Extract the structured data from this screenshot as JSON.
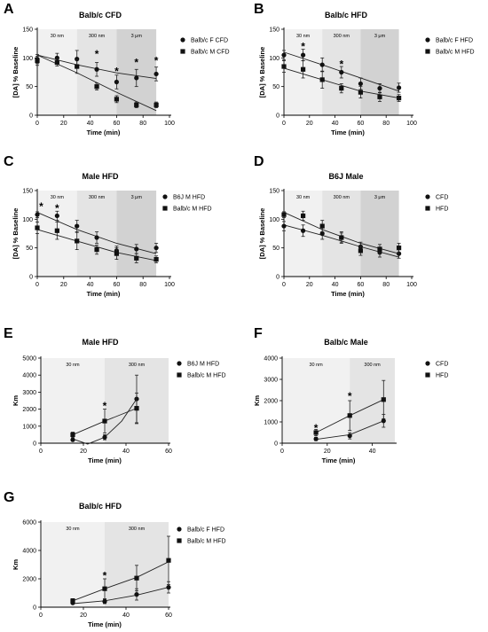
{
  "chart_data": [
    {
      "panel": "A",
      "type": "scatter",
      "title": "Balb/c CFD",
      "xlabel": "Time (min)",
      "ylabel": "[DA] % Baseline",
      "xlim": [
        0,
        100
      ],
      "ylim": [
        0,
        150
      ],
      "xticks": [
        0,
        20,
        40,
        60,
        80,
        100
      ],
      "yticks": [
        0,
        50,
        100,
        150
      ],
      "zones": [
        {
          "label": "30 nm",
          "from": 0,
          "to": 30,
          "shade": "#f1f1f1"
        },
        {
          "label": "300 nm",
          "from": 30,
          "to": 60,
          "shade": "#e4e4e4"
        },
        {
          "label": "3 μm",
          "from": 60,
          "to": 90,
          "shade": "#d2d2d2"
        }
      ],
      "series": [
        {
          "name": "Balb/c F CFD",
          "marker": "circle",
          "x": [
            0,
            15,
            30,
            45,
            60,
            75,
            90
          ],
          "y": [
            98,
            100,
            98,
            80,
            58,
            65,
            72
          ],
          "err": [
            8,
            8,
            15,
            12,
            12,
            15,
            12
          ],
          "fit": [
            [
              0,
              105
            ],
            [
              30,
              88
            ],
            [
              60,
              74
            ],
            [
              90,
              64
            ]
          ]
        },
        {
          "name": "Balb/c M CFD",
          "marker": "square",
          "x": [
            0,
            15,
            30,
            45,
            60,
            75,
            90
          ],
          "y": [
            95,
            92,
            85,
            50,
            28,
            18,
            18
          ],
          "err": [
            8,
            6,
            12,
            6,
            6,
            5,
            5
          ],
          "fit": [
            [
              0,
              105
            ],
            [
              30,
              74
            ],
            [
              60,
              40
            ],
            [
              90,
              8
            ]
          ]
        }
      ],
      "stars": [
        {
          "x": 45,
          "y": 110
        },
        {
          "x": 60,
          "y": 80
        },
        {
          "x": 75,
          "y": 95
        },
        {
          "x": 90,
          "y": 98
        }
      ]
    },
    {
      "panel": "B",
      "type": "scatter",
      "title": "Balb/c HFD",
      "xlabel": "Time (min)",
      "ylabel": "[DA] % Baseline",
      "xlim": [
        0,
        100
      ],
      "ylim": [
        0,
        150
      ],
      "xticks": [
        0,
        20,
        40,
        60,
        80,
        100
      ],
      "yticks": [
        0,
        50,
        100,
        150
      ],
      "zones": [
        {
          "label": "30 nm",
          "from": 0,
          "to": 30,
          "shade": "#f1f1f1"
        },
        {
          "label": "300 nm",
          "from": 30,
          "to": 60,
          "shade": "#e4e4e4"
        },
        {
          "label": "3 μm",
          "from": 60,
          "to": 90,
          "shade": "#d2d2d2"
        }
      ],
      "series": [
        {
          "name": "Balb/c F HFD",
          "marker": "circle",
          "x": [
            0,
            15,
            30,
            45,
            60,
            75,
            90
          ],
          "y": [
            105,
            105,
            88,
            75,
            55,
            47,
            48
          ],
          "err": [
            8,
            10,
            12,
            10,
            10,
            8,
            8
          ],
          "fit": [
            [
              0,
              110
            ],
            [
              30,
              88
            ],
            [
              60,
              65
            ],
            [
              90,
              42
            ]
          ]
        },
        {
          "name": "Balb/c M HFD",
          "marker": "square",
          "x": [
            0,
            15,
            30,
            45,
            60,
            75,
            90
          ],
          "y": [
            85,
            80,
            62,
            47,
            40,
            32,
            30
          ],
          "err": [
            10,
            15,
            15,
            8,
            10,
            8,
            6
          ],
          "fit": [
            [
              0,
              82
            ],
            [
              30,
              62
            ],
            [
              60,
              42
            ],
            [
              90,
              30
            ]
          ]
        }
      ],
      "stars": [
        {
          "x": 15,
          "y": 123
        },
        {
          "x": 45,
          "y": 92
        }
      ]
    },
    {
      "panel": "C",
      "type": "scatter",
      "title": "Male HFD",
      "xlabel": "Time (min)",
      "ylabel": "[DA] % Baseline",
      "xlim": [
        0,
        100
      ],
      "ylim": [
        0,
        150
      ],
      "xticks": [
        0,
        20,
        40,
        60,
        80,
        100
      ],
      "yticks": [
        0,
        50,
        100,
        150
      ],
      "zones": [
        {
          "label": "30 nm",
          "from": 0,
          "to": 30,
          "shade": "#f1f1f1"
        },
        {
          "label": "300 nm",
          "from": 30,
          "to": 60,
          "shade": "#e4e4e4"
        },
        {
          "label": "3 μm",
          "from": 60,
          "to": 90,
          "shade": "#d2d2d2"
        }
      ],
      "series": [
        {
          "name": "B6J M HFD",
          "marker": "circle",
          "x": [
            0,
            15,
            30,
            45,
            60,
            75,
            90
          ],
          "y": [
            108,
            106,
            88,
            68,
            45,
            48,
            50
          ],
          "err": [
            5,
            8,
            10,
            10,
            8,
            8,
            8
          ],
          "fit": [
            [
              0,
              112
            ],
            [
              30,
              82
            ],
            [
              60,
              58
            ],
            [
              90,
              40
            ]
          ]
        },
        {
          "name": "Balb/c M HFD",
          "marker": "square",
          "x": [
            0,
            15,
            30,
            45,
            60,
            75,
            90
          ],
          "y": [
            85,
            80,
            62,
            47,
            40,
            32,
            30
          ],
          "err": [
            10,
            15,
            15,
            8,
            10,
            8,
            6
          ],
          "fit": [
            [
              0,
              82
            ],
            [
              30,
              62
            ],
            [
              60,
              42
            ],
            [
              90,
              28
            ]
          ]
        }
      ],
      "stars": [
        {
          "x": 3,
          "y": 125
        },
        {
          "x": 15,
          "y": 122
        }
      ]
    },
    {
      "panel": "D",
      "type": "scatter",
      "title": "B6J Male",
      "xlabel": "Time (min)",
      "ylabel": "[DA] % Baseline",
      "xlim": [
        0,
        100
      ],
      "ylim": [
        0,
        150
      ],
      "xticks": [
        0,
        20,
        40,
        60,
        80,
        100
      ],
      "yticks": [
        0,
        50,
        100,
        150
      ],
      "zones": [
        {
          "label": "30 nm",
          "from": 0,
          "to": 30,
          "shade": "#f1f1f1"
        },
        {
          "label": "300 nm",
          "from": 30,
          "to": 60,
          "shade": "#e4e4e4"
        },
        {
          "label": "3 μm",
          "from": 60,
          "to": 90,
          "shade": "#d2d2d2"
        }
      ],
      "series": [
        {
          "name": "CFD",
          "marker": "circle",
          "x": [
            0,
            15,
            30,
            45,
            60,
            75,
            90
          ],
          "y": [
            88,
            80,
            75,
            68,
            52,
            42,
            40
          ],
          "err": [
            8,
            10,
            10,
            8,
            8,
            8,
            8
          ],
          "fit": [
            [
              0,
              90
            ],
            [
              30,
              72
            ],
            [
              60,
              52
            ],
            [
              90,
              34
            ]
          ]
        },
        {
          "name": "HFD",
          "marker": "square",
          "x": [
            0,
            15,
            30,
            45,
            60,
            75,
            90
          ],
          "y": [
            108,
            106,
            88,
            68,
            45,
            48,
            50
          ],
          "err": [
            5,
            8,
            10,
            10,
            8,
            8,
            8
          ],
          "fit": [
            [
              0,
              112
            ],
            [
              30,
              82
            ],
            [
              60,
              58
            ],
            [
              90,
              40
            ]
          ]
        }
      ],
      "stars": []
    },
    {
      "panel": "E",
      "type": "scatter",
      "title": "Male HFD",
      "xlabel": "Time (min)",
      "ylabel": "Km",
      "xlim": [
        0,
        60
      ],
      "ylim": [
        0,
        5000
      ],
      "xticks": [
        0,
        20,
        40,
        60
      ],
      "yticks": [
        0,
        1000,
        2000,
        3000,
        4000,
        5000
      ],
      "zones": [
        {
          "label": "30 nm",
          "from": 0,
          "to": 30,
          "shade": "#f1f1f1"
        },
        {
          "label": "300 nm",
          "from": 30,
          "to": 60,
          "shade": "#e4e4e4"
        }
      ],
      "series": [
        {
          "name": "B6J M HFD",
          "marker": "circle",
          "x": [
            15,
            30,
            45
          ],
          "y": [
            200,
            350,
            2600
          ],
          "err": [
            80,
            150,
            1400
          ],
          "fit": [
            [
              15,
              250
            ],
            [
              22,
              -50
            ],
            [
              30,
              350
            ],
            [
              38,
              1300
            ],
            [
              45,
              2600
            ]
          ]
        },
        {
          "name": "Balb/c M HFD",
          "marker": "square",
          "x": [
            15,
            30,
            45
          ],
          "y": [
            500,
            1300,
            2050
          ],
          "err": [
            150,
            700,
            900
          ],
          "fit": [
            [
              15,
              500
            ],
            [
              30,
              1300
            ],
            [
              45,
              2050
            ]
          ]
        }
      ],
      "stars": [
        {
          "x": 30,
          "y": 2300
        }
      ]
    },
    {
      "panel": "F",
      "type": "scatter",
      "title": "Balb/c Male",
      "xlabel": "Time (min)",
      "ylabel": "Km",
      "xlim": [
        0,
        50
      ],
      "ylim": [
        0,
        4000
      ],
      "xticks": [
        0,
        20,
        40
      ],
      "yticks": [
        0,
        1000,
        2000,
        3000,
        4000
      ],
      "zones": [
        {
          "label": "30 nm",
          "from": 0,
          "to": 30,
          "shade": "#f1f1f1"
        },
        {
          "label": "300 nm",
          "from": 30,
          "to": 50,
          "shade": "#e4e4e4"
        }
      ],
      "series": [
        {
          "name": "CFD",
          "marker": "circle",
          "x": [
            15,
            30,
            45
          ],
          "y": [
            200,
            350,
            1050
          ],
          "err": [
            80,
            150,
            300
          ],
          "fit": [
            [
              15,
              180
            ],
            [
              30,
              400
            ],
            [
              45,
              1050
            ]
          ]
        },
        {
          "name": "HFD",
          "marker": "square",
          "x": [
            15,
            30,
            45
          ],
          "y": [
            500,
            1300,
            2050
          ],
          "err": [
            150,
            700,
            900
          ],
          "fit": [
            [
              15,
              500
            ],
            [
              30,
              1300
            ],
            [
              45,
              2050
            ]
          ]
        }
      ],
      "stars": [
        {
          "x": 15,
          "y": 800
        },
        {
          "x": 30,
          "y": 2300
        }
      ]
    },
    {
      "panel": "G",
      "type": "scatter",
      "title": "Balb/c HFD",
      "xlabel": "Time (min)",
      "ylabel": "Km",
      "xlim": [
        0,
        60
      ],
      "ylim": [
        0,
        6000
      ],
      "xticks": [
        0,
        20,
        40,
        60
      ],
      "yticks": [
        0,
        2000,
        4000,
        6000
      ],
      "zones": [
        {
          "label": "30 nm",
          "from": 0,
          "to": 30,
          "shade": "#f1f1f1"
        },
        {
          "label": "300 nm",
          "from": 30,
          "to": 60,
          "shade": "#e4e4e4"
        }
      ],
      "series": [
        {
          "name": "Balb/c F HFD",
          "marker": "circle",
          "x": [
            15,
            30,
            45,
            60
          ],
          "y": [
            300,
            400,
            900,
            1400
          ],
          "err": [
            80,
            150,
            400,
            400
          ],
          "fit": [
            [
              15,
              250
            ],
            [
              30,
              450
            ],
            [
              45,
              850
            ],
            [
              60,
              1400
            ]
          ]
        },
        {
          "name": "Balb/c M HFD",
          "marker": "square",
          "x": [
            15,
            30,
            45,
            60
          ],
          "y": [
            450,
            1300,
            2050,
            3300
          ],
          "err": [
            150,
            700,
            900,
            1700
          ],
          "fit": [
            [
              15,
              450
            ],
            [
              30,
              1300
            ],
            [
              45,
              2100
            ],
            [
              60,
              3200
            ]
          ]
        }
      ],
      "stars": [
        {
          "x": 30,
          "y": 2350
        }
      ]
    }
  ]
}
